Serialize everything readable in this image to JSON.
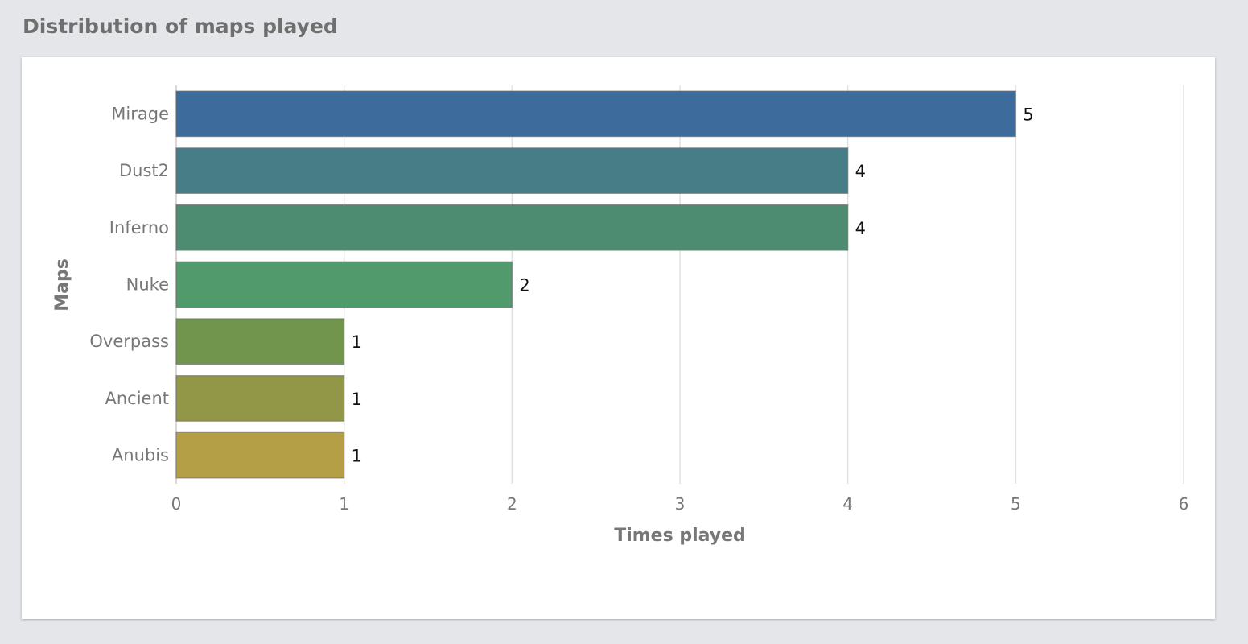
{
  "page": {
    "title": "Distribution of maps played"
  },
  "chart_data": {
    "type": "bar",
    "orientation": "horizontal",
    "categories": [
      "Mirage",
      "Dust2",
      "Inferno",
      "Nuke",
      "Overpass",
      "Ancient",
      "Anubis"
    ],
    "values": [
      5,
      4,
      4,
      2,
      1,
      1,
      1
    ],
    "colors": [
      "#3d6c9c",
      "#467d87",
      "#4d8c70",
      "#509a6c",
      "#72954d",
      "#929748",
      "#b49f46"
    ],
    "xlabel": "Times played",
    "ylabel": "Maps",
    "xlim": [
      0,
      6
    ],
    "xticks": [
      0,
      1,
      2,
      3,
      4,
      5,
      6
    ],
    "grid": true,
    "data_labels": true
  }
}
